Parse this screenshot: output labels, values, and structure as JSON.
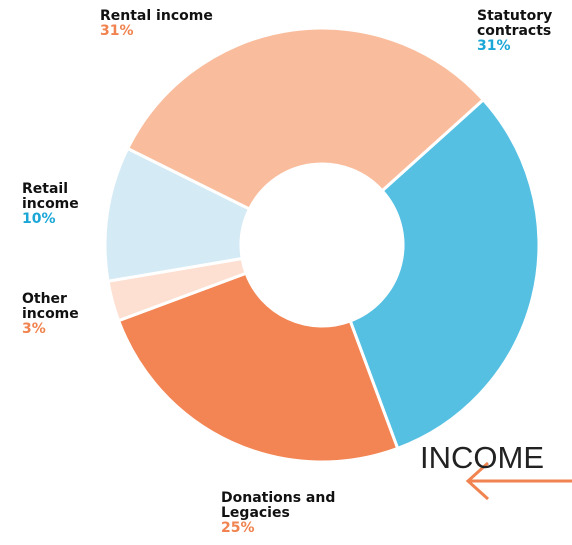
{
  "chart_data": {
    "type": "donut",
    "title": "INCOME",
    "categories": [
      "Statutory contracts",
      "Donations and Legacies",
      "Other income",
      "Retail income",
      "Rental income"
    ],
    "values": [
      31,
      25,
      3,
      10,
      31
    ],
    "value_labels": [
      "31%",
      "25%",
      "3%",
      "10%",
      "31%"
    ],
    "colors": [
      "#56c0e3",
      "#f38453",
      "#fde0d2",
      "#d4eaf5",
      "#f9bd9d"
    ],
    "label_colors": [
      "#1aa6d6",
      "#f0834f",
      "#f0834f",
      "#1aa6d6",
      "#f0834f"
    ]
  }
}
